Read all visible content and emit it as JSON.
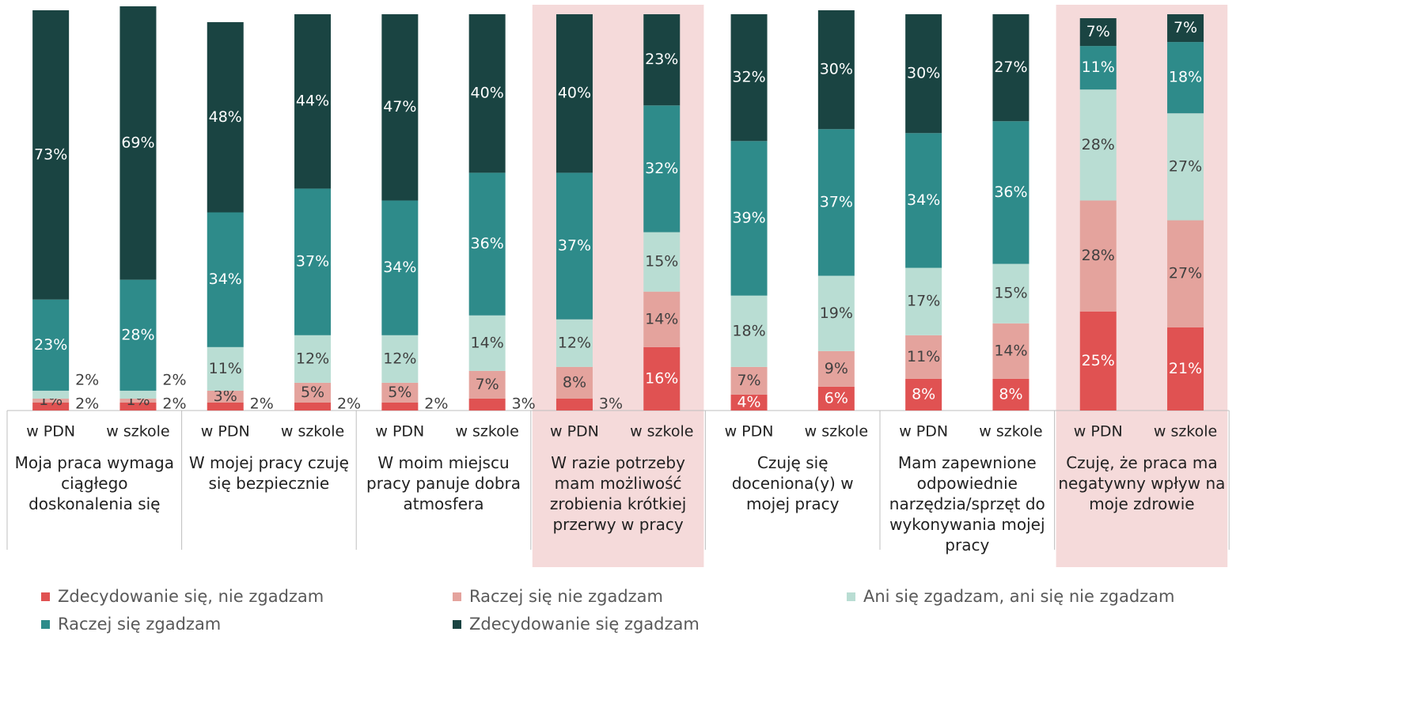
{
  "chart_data": {
    "type": "stacked_bar_100",
    "groups": [
      {
        "label": "Moja praca wymaga ciągłego doskonalenia się",
        "categories": [
          "w PDN",
          "w szkole"
        ],
        "highlighted": false
      },
      {
        "label": "W mojej pracy czuję się bezpiecznie",
        "categories": [
          "w PDN",
          "w szkole"
        ],
        "highlighted": false
      },
      {
        "label": "W moim miejscu pracy panuje dobra atmosfera",
        "categories": [
          "w PDN",
          "w szkole"
        ],
        "highlighted": false
      },
      {
        "label": "W razie potrzeby mam możliwość zrobienia krótkiej przerwy w pracy",
        "categories": [
          "w PDN",
          "w szkole"
        ],
        "highlighted": true
      },
      {
        "label": "Czuję się doceniona(y) w mojej pracy",
        "categories": [
          "w PDN",
          "w szkole"
        ],
        "highlighted": false
      },
      {
        "label": "Mam zapewnione odpowiednie narzędzia/sprzęt do wykonywania mojej pracy",
        "categories": [
          "w PDN",
          "w szkole"
        ],
        "highlighted": false
      },
      {
        "label": "Czuję, że praca ma negatywny wpływ na moje zdrowie",
        "categories": [
          "w PDN",
          "w szkole"
        ],
        "highlighted": true
      }
    ],
    "ylim": [
      0,
      100
    ],
    "series": [
      {
        "name": "Zdecydowanie się, nie zgadzam",
        "color": "#e05252",
        "values": [
          2,
          2,
          2,
          2,
          2,
          3,
          3,
          16,
          4,
          6,
          8,
          8,
          25,
          21
        ],
        "value_labels": [
          "2%",
          "2%",
          "2%",
          "2%",
          "2%",
          "3%",
          "3%",
          "16%",
          "4%",
          "6%",
          "8%",
          "8%",
          "25%",
          "21%"
        ]
      },
      {
        "name": "Raczej się nie zgadzam",
        "color": "#e4a39d",
        "values": [
          1,
          1,
          3,
          5,
          5,
          7,
          8,
          14,
          7,
          9,
          11,
          14,
          28,
          27
        ],
        "value_labels": [
          "1%",
          "1%",
          "3%",
          "5%",
          "5%",
          "7%",
          "8%",
          "14%",
          "7%",
          "9%",
          "11%",
          "14%",
          "28%",
          "27%"
        ]
      },
      {
        "name": "Ani się zgadzam, ani się nie zgadzam",
        "color": "#b9ddd3",
        "values": [
          2,
          2,
          11,
          12,
          12,
          14,
          12,
          15,
          18,
          19,
          17,
          15,
          28,
          27
        ],
        "value_labels": [
          "2%",
          "2%",
          "11%",
          "12%",
          "12%",
          "14%",
          "12%",
          "15%",
          "18%",
          "19%",
          "17%",
          "15%",
          "28%",
          "27%"
        ]
      },
      {
        "name": "Raczej się zgadzam",
        "color": "#2e8b8a",
        "values": [
          23,
          28,
          34,
          37,
          34,
          36,
          37,
          32,
          39,
          37,
          34,
          36,
          11,
          18
        ],
        "value_labels": [
          "23%",
          "28%",
          "34%",
          "37%",
          "34%",
          "36%",
          "37%",
          "32%",
          "39%",
          "37%",
          "34%",
          "36%",
          "11%",
          "18%"
        ]
      },
      {
        "name": "Zdecydowanie się zgadzam",
        "color": "#1a4442",
        "values": [
          73,
          69,
          48,
          44,
          47,
          40,
          40,
          23,
          32,
          30,
          30,
          27,
          7,
          7
        ],
        "value_labels": [
          "73%",
          "69%",
          "48%",
          "44%",
          "47%",
          "40%",
          "40%",
          "23%",
          "32%",
          "30%",
          "30%",
          "27%",
          "7%",
          "7%"
        ]
      }
    ]
  }
}
